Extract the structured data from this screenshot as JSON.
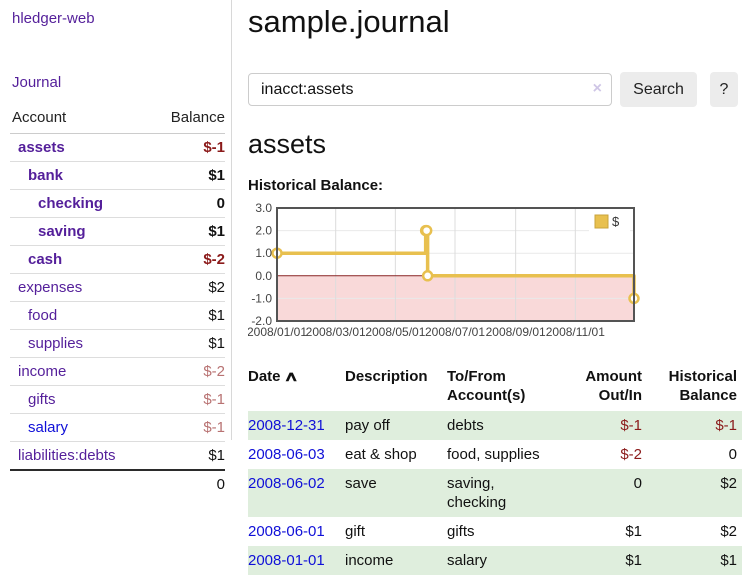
{
  "app": {
    "title": "hledger-web"
  },
  "sidebar": {
    "journal_link": "Journal",
    "headers": {
      "account": "Account",
      "balance": "Balance"
    },
    "accounts": [
      {
        "name": "assets",
        "balance": "$-1"
      },
      {
        "name": "bank",
        "balance": "$1"
      },
      {
        "name": "checking",
        "balance": "0"
      },
      {
        "name": "saving",
        "balance": "$1"
      },
      {
        "name": "cash",
        "balance": "$-2"
      },
      {
        "name": "expenses",
        "balance": "$2"
      },
      {
        "name": "food",
        "balance": "$1"
      },
      {
        "name": "supplies",
        "balance": "$1"
      },
      {
        "name": "income",
        "balance": "$-2"
      },
      {
        "name": "gifts",
        "balance": "$-1"
      },
      {
        "name": "salary",
        "balance": "$-1"
      },
      {
        "name": "liabilities:debts",
        "balance": "$1"
      }
    ],
    "total": "0"
  },
  "header": {
    "title": "sample.journal"
  },
  "search": {
    "value": "inacct:assets",
    "clear_icon": "×",
    "button_label": "Search",
    "help_label": "?"
  },
  "content": {
    "account_heading": "assets",
    "chart_label": "Historical Balance:"
  },
  "chart_data": {
    "type": "line",
    "style": "step",
    "title": "Historical Balance",
    "series": [
      {
        "name": "$",
        "color": "#e8c04f",
        "points": [
          [
            "2008-01-01",
            1
          ],
          [
            "2008-06-01",
            2
          ],
          [
            "2008-06-02",
            2
          ],
          [
            "2008-06-03",
            0
          ],
          [
            "2008-12-31",
            -1
          ]
        ]
      }
    ],
    "x_range": [
      "2008-01-01",
      "2008-12-31"
    ],
    "x_ticks": [
      "2008/01/01",
      "2008/03/01",
      "2008/05/01",
      "2008/07/01",
      "2008/09/01",
      "2008/11/01"
    ],
    "y_ticks": [
      "3.0",
      "2.0",
      "1.0",
      "0.0",
      "-1.0",
      "-2.0"
    ],
    "ylim": [
      -2,
      3
    ],
    "grid": true,
    "legend": {
      "label": "$",
      "position": "top-right"
    },
    "colors": {
      "line": "#e8c04f",
      "marker_fill": "#ffffff",
      "swatch_border": "#c9a33b",
      "negative_region": "#f9d9d9",
      "zero_line": "#8b2525",
      "plot_border": "#545454",
      "grid": "#dcdcdc",
      "tick_text": "#444444"
    }
  },
  "register_table": {
    "headers": {
      "date": "Date",
      "sort_icon": "∧",
      "description": "Description",
      "account": "To/From Account(s)",
      "amount": "Amount Out/In",
      "balance": "Historical Balance"
    },
    "rows": [
      {
        "date": "2008-12-31",
        "description": "pay off",
        "account": "debts",
        "amount": "$-1",
        "balance": "$-1"
      },
      {
        "date": "2008-06-03",
        "description": "eat & shop",
        "account": "food, supplies",
        "amount": "$-2",
        "balance": "0"
      },
      {
        "date": "2008-06-02",
        "description": "save",
        "account": "saving, checking",
        "amount": "0",
        "balance": "$2"
      },
      {
        "date": "2008-06-01",
        "description": "gift",
        "account": "gifts",
        "amount": "$1",
        "balance": "$2"
      },
      {
        "date": "2008-01-01",
        "description": "income",
        "account": "salary",
        "amount": "$1",
        "balance": "$1"
      }
    ]
  }
}
